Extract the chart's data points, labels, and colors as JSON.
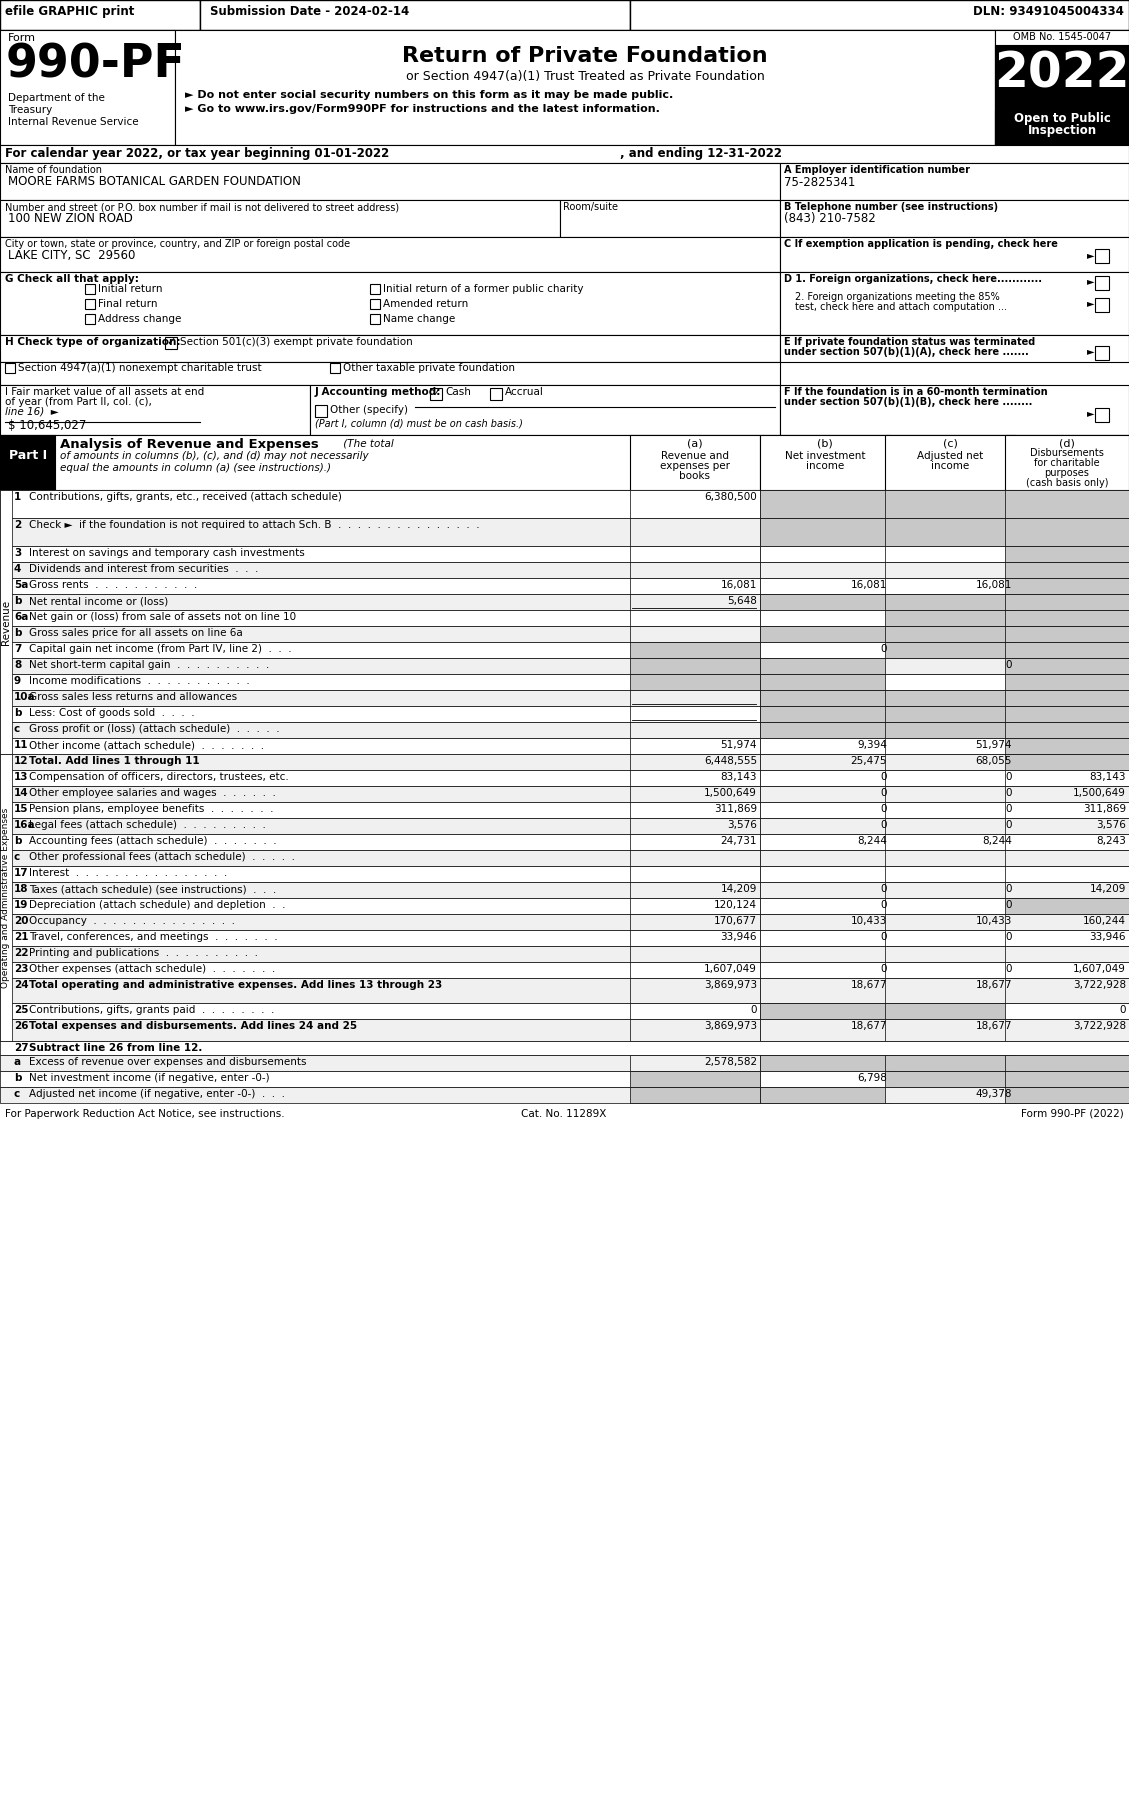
{
  "header_bar": {
    "efile": "efile GRAPHIC print",
    "submission": "Submission Date - 2024-02-14",
    "dln": "DLN: 93491045004334"
  },
  "form_number": "990-PF",
  "form_label": "Form",
  "dept1": "Department of the",
  "dept2": "Treasury",
  "dept3": "Internal Revenue Service",
  "title": "Return of Private Foundation",
  "subtitle": "or Section 4947(a)(1) Trust Treated as Private Foundation",
  "bullet1": "Do not enter social security numbers on this form as it may be made public.",
  "bullet2": "Go to www.irs.gov/Form990PF for instructions and the latest information.",
  "year": "2022",
  "year_label1": "Open to Public",
  "year_label2": "Inspection",
  "omb": "OMB No. 1545-0047",
  "name_value": "MOORE FARMS BOTANICAL GARDEN FOUNDATION",
  "ein_value": "75-2825341",
  "street_value": "100 NEW ZION ROAD",
  "phone_value": "(843) 210-7582",
  "city_value": "LAKE CITY, SC  29560",
  "h_option1": "Section 501(c)(3) exempt private foundation",
  "h_option2": "Section 4947(a)(1) nonexempt charitable trust",
  "h_option3": "Other taxable private foundation",
  "i_value": "$ 10,645,027",
  "footer1": "For Paperwork Reduction Act Notice, see instructions.",
  "footer2": "Cat. No. 11289X",
  "footer3": "Form 990-PF (2022)",
  "rows": [
    {
      "num": "1",
      "label": "Contributions, gifts, grants, etc., received (attach schedule)",
      "a": "6,380,500",
      "b": "",
      "c": "",
      "d": "",
      "gray_b": true,
      "gray_c": true,
      "gray_d": true,
      "rh": 28
    },
    {
      "num": "2",
      "label": "Check ►  if the foundation is not required to attach Sch. B  .  .  .  .  .  .  .  .  .  .  .  .  .  .  .",
      "a": "",
      "b": "",
      "c": "",
      "d": "",
      "gray_b": true,
      "gray_c": true,
      "gray_d": true,
      "rh": 28
    },
    {
      "num": "3",
      "label": "Interest on savings and temporary cash investments",
      "a": "",
      "b": "",
      "c": "",
      "d": "",
      "gray_d": true,
      "rh": 16
    },
    {
      "num": "4",
      "label": "Dividends and interest from securities  .  .  .",
      "a": "",
      "b": "",
      "c": "",
      "d": "",
      "gray_d": true,
      "rh": 16
    },
    {
      "num": "5a",
      "label": "Gross rents  .  .  .  .  .  .  .  .  .  .  .",
      "a": "16,081",
      "b": "16,081",
      "c": "16,081",
      "d": "",
      "gray_d": true,
      "rh": 16
    },
    {
      "num": "b",
      "label": "Net rental income or (loss)",
      "a": "5,648",
      "b": "",
      "c": "",
      "d": "",
      "underline_a": true,
      "gray_b": true,
      "gray_c": true,
      "gray_d": true,
      "rh": 16
    },
    {
      "num": "6a",
      "label": "Net gain or (loss) from sale of assets not on line 10",
      "a": "",
      "b": "",
      "c": "",
      "d": "",
      "gray_c": true,
      "gray_d": true,
      "rh": 16
    },
    {
      "num": "b",
      "label": "Gross sales price for all assets on line 6a",
      "a": "",
      "b": "",
      "c": "",
      "d": "",
      "gray_b": true,
      "gray_c": true,
      "gray_d": true,
      "rh": 16
    },
    {
      "num": "7",
      "label": "Capital gain net income (from Part IV, line 2)  .  .  .",
      "a": "",
      "b": "0",
      "c": "",
      "d": "",
      "gray_a": true,
      "gray_c": true,
      "gray_d": true,
      "rh": 16
    },
    {
      "num": "8",
      "label": "Net short-term capital gain  .  .  .  .  .  .  .  .  .  .",
      "a": "",
      "b": "",
      "c": "0",
      "d": "",
      "gray_a": true,
      "gray_b": true,
      "gray_d": true,
      "rh": 16
    },
    {
      "num": "9",
      "label": "Income modifications  .  .  .  .  .  .  .  .  .  .  .",
      "a": "",
      "b": "",
      "c": "",
      "d": "",
      "gray_a": true,
      "gray_b": true,
      "gray_d": true,
      "rh": 16
    },
    {
      "num": "10a",
      "label": "Gross sales less returns and allowances",
      "a": "",
      "b": "",
      "c": "",
      "d": "",
      "underline_a": true,
      "gray_b": true,
      "gray_c": true,
      "gray_d": true,
      "rh": 16
    },
    {
      "num": "b",
      "label": "Less: Cost of goods sold  .  .  .  .",
      "a": "",
      "b": "",
      "c": "",
      "d": "",
      "underline_a": true,
      "gray_b": true,
      "gray_c": true,
      "gray_d": true,
      "rh": 16
    },
    {
      "num": "c",
      "label": "Gross profit or (loss) (attach schedule)  .  .  .  .  .",
      "a": "",
      "b": "",
      "c": "",
      "d": "",
      "gray_b": true,
      "gray_c": true,
      "gray_d": true,
      "rh": 16
    },
    {
      "num": "11",
      "label": "Other income (attach schedule)  .  .  .  .  .  .  .",
      "a": "51,974",
      "b": "9,394",
      "c": "51,974",
      "d": "",
      "gray_d": true,
      "rh": 16
    },
    {
      "num": "12",
      "label": "Total. Add lines 1 through 11",
      "a": "6,448,555",
      "b": "25,475",
      "c": "68,055",
      "d": "",
      "bold_label": true,
      "gray_d": true,
      "rh": 16
    },
    {
      "num": "13",
      "label": "Compensation of officers, directors, trustees, etc.",
      "a": "83,143",
      "b": "0",
      "c": "0",
      "d": "83,143",
      "rh": 16
    },
    {
      "num": "14",
      "label": "Other employee salaries and wages  .  .  .  .  .  .",
      "a": "1,500,649",
      "b": "0",
      "c": "0",
      "d": "1,500,649",
      "rh": 16
    },
    {
      "num": "15",
      "label": "Pension plans, employee benefits  .  .  .  .  .  .  .",
      "a": "311,869",
      "b": "0",
      "c": "0",
      "d": "311,869",
      "rh": 16
    },
    {
      "num": "16a",
      "label": "Legal fees (attach schedule)  .  .  .  .  .  .  .  .  .",
      "a": "3,576",
      "b": "0",
      "c": "0",
      "d": "3,576",
      "rh": 16
    },
    {
      "num": "b",
      "label": "Accounting fees (attach schedule)  .  .  .  .  .  .  .",
      "a": "24,731",
      "b": "8,244",
      "c": "8,244",
      "d": "8,243",
      "rh": 16
    },
    {
      "num": "c",
      "label": "Other professional fees (attach schedule)  .  .  .  .  .",
      "a": "",
      "b": "",
      "c": "",
      "d": "",
      "rh": 16
    },
    {
      "num": "17",
      "label": "Interest  .  .  .  .  .  .  .  .  .  .  .  .  .  .  .  .",
      "a": "",
      "b": "",
      "c": "",
      "d": "",
      "rh": 16
    },
    {
      "num": "18",
      "label": "Taxes (attach schedule) (see instructions)  .  .  .",
      "a": "14,209",
      "b": "0",
      "c": "0",
      "d": "14,209",
      "rh": 16
    },
    {
      "num": "19",
      "label": "Depreciation (attach schedule) and depletion  .  .",
      "a": "120,124",
      "b": "0",
      "c": "0",
      "d": "",
      "gray_d": true,
      "rh": 16
    },
    {
      "num": "20",
      "label": "Occupancy  .  .  .  .  .  .  .  .  .  .  .  .  .  .  .",
      "a": "170,677",
      "b": "10,433",
      "c": "10,433",
      "d": "160,244",
      "rh": 16
    },
    {
      "num": "21",
      "label": "Travel, conferences, and meetings  .  .  .  .  .  .  .",
      "a": "33,946",
      "b": "0",
      "c": "0",
      "d": "33,946",
      "rh": 16
    },
    {
      "num": "22",
      "label": "Printing and publications  .  .  .  .  .  .  .  .  .  .",
      "a": "",
      "b": "",
      "c": "",
      "d": "",
      "rh": 16
    },
    {
      "num": "23",
      "label": "Other expenses (attach schedule)  .  .  .  .  .  .  .",
      "a": "1,607,049",
      "b": "0",
      "c": "0",
      "d": "1,607,049",
      "rh": 16
    },
    {
      "num": "24",
      "label": "Total operating and administrative expenses. Add lines 13 through 23",
      "a": "3,869,973",
      "b": "18,677",
      "c": "18,677",
      "d": "3,722,928",
      "bold_label": true,
      "rh": 25
    },
    {
      "num": "25",
      "label": "Contributions, gifts, grants paid  .  .  .  .  .  .  .  .",
      "a": "0",
      "b": "",
      "c": "",
      "d": "0",
      "gray_b": true,
      "gray_c": true,
      "rh": 16
    },
    {
      "num": "26",
      "label": "Total expenses and disbursements. Add lines 24 and 25",
      "a": "3,869,973",
      "b": "18,677",
      "c": "18,677",
      "d": "3,722,928",
      "bold_label": true,
      "rh": 22
    },
    {
      "num": "27",
      "label": "Subtract line 26 from line 12.",
      "bold_label": true,
      "sub": true,
      "rh": 14
    },
    {
      "num": "a",
      "label": "Excess of revenue over expenses and disbursements",
      "a": "2,578,582",
      "b": "",
      "c": "",
      "d": "",
      "gray_b": true,
      "gray_c": true,
      "gray_d": true,
      "rh": 16
    },
    {
      "num": "b",
      "label": "Net investment income (if negative, enter -0-)",
      "a": "",
      "b": "6,798",
      "c": "",
      "d": "",
      "gray_a": true,
      "gray_c": true,
      "gray_d": true,
      "rh": 16
    },
    {
      "num": "c",
      "label": "Adjusted net income (if negative, enter -0-)  .  .  .",
      "a": "",
      "b": "",
      "c": "49,378",
      "d": "",
      "gray_a": true,
      "gray_b": true,
      "gray_d": true,
      "rh": 16
    }
  ]
}
